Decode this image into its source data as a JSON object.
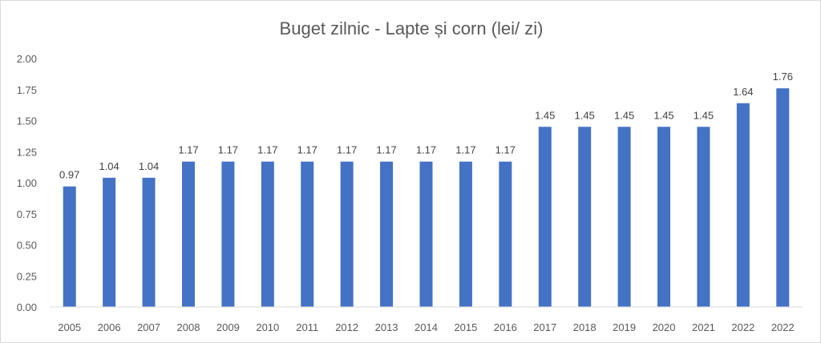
{
  "chart_data": {
    "type": "bar",
    "title": "Buget zilnic - Lapte și corn (lei/ zi)",
    "xlabel": "",
    "ylabel": "",
    "categories": [
      "2005",
      "2006",
      "2007",
      "2008",
      "2009",
      "2010",
      "2011",
      "2012",
      "2013",
      "2014",
      "2015",
      "2016",
      "2017",
      "2018",
      "2019",
      "2020",
      "2021",
      "2022",
      "2022"
    ],
    "values": [
      0.97,
      1.04,
      1.04,
      1.17,
      1.17,
      1.17,
      1.17,
      1.17,
      1.17,
      1.17,
      1.17,
      1.17,
      1.45,
      1.45,
      1.45,
      1.45,
      1.45,
      1.64,
      1.76
    ],
    "data_labels": [
      "0.97",
      "1.04",
      "1.04",
      "1.17",
      "1.17",
      "1.17",
      "1.17",
      "1.17",
      "1.17",
      "1.17",
      "1.17",
      "1.17",
      "1.45",
      "1.45",
      "1.45",
      "1.45",
      "1.45",
      "1.64",
      "1.76"
    ],
    "ylim": [
      0,
      2
    ],
    "yticks": [
      "0.00",
      "0.25",
      "0.50",
      "0.75",
      "1.00",
      "1.25",
      "1.50",
      "1.75",
      "2.00"
    ],
    "grid": false,
    "legend": "none",
    "bar_color": "#4472C4"
  }
}
